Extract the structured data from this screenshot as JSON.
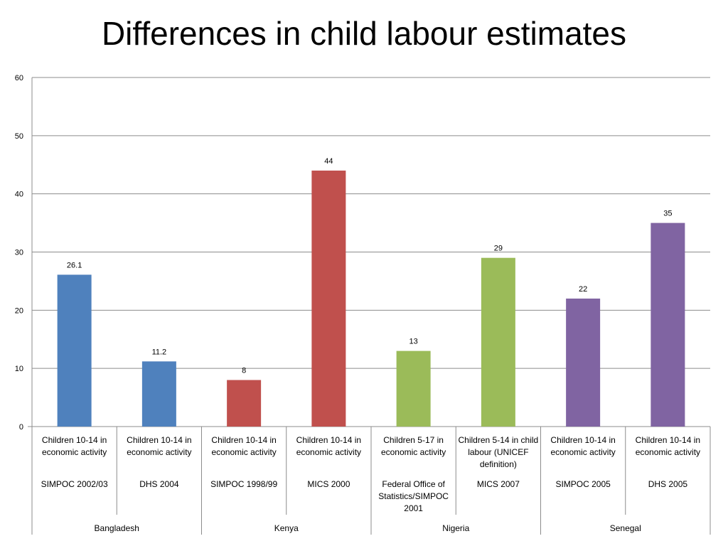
{
  "title": "Differences in child labour estimates",
  "chart_data": {
    "type": "bar",
    "title": "Differences in child labour estimates",
    "ylim": [
      0,
      60
    ],
    "yticks": [
      0,
      10,
      20,
      30,
      40,
      50,
      60
    ],
    "grid": true,
    "legend": "none",
    "categories": [
      {
        "measure": "Children 10-14 in economic activity",
        "source": "SIMPOC 2002/03",
        "country": "Bangladesh",
        "value": 26.1,
        "label": "26.1",
        "color": "#4F81BD"
      },
      {
        "measure": "Children 10-14 in economic activity",
        "source": "DHS 2004",
        "country": "Bangladesh",
        "value": 11.2,
        "label": "11.2",
        "color": "#4F81BD"
      },
      {
        "measure": "Children 10-14 in economic activity",
        "source": "SIMPOC 1998/99",
        "country": "Kenya",
        "value": 8,
        "label": "8",
        "color": "#C0504D"
      },
      {
        "measure": "Children 10-14 in economic activity",
        "source": "MICS 2000",
        "country": "Kenya",
        "value": 44,
        "label": "44",
        "color": "#C0504D"
      },
      {
        "measure": "Children 5-17 in economic activity",
        "source": "Federal Office of Statistics/SIMPOC 2001",
        "country": "Nigeria",
        "value": 13,
        "label": "13",
        "color": "#9BBB59"
      },
      {
        "measure": "Children 5-14 in child labour (UNICEF definition)",
        "source": "MICS 2007",
        "country": "Nigeria",
        "value": 29,
        "label": "29",
        "color": "#9BBB59"
      },
      {
        "measure": "Children 10-14 in economic activity",
        "source": "SIMPOC 2005",
        "country": "Senegal",
        "value": 22,
        "label": "22",
        "color": "#8064A2"
      },
      {
        "measure": "Children 10-14 in economic activity",
        "source": "DHS 2005",
        "country": "Senegal",
        "value": 35,
        "label": "35",
        "color": "#8064A2"
      }
    ],
    "groups": [
      "Bangladesh",
      "Kenya",
      "Nigeria",
      "Senegal"
    ]
  }
}
